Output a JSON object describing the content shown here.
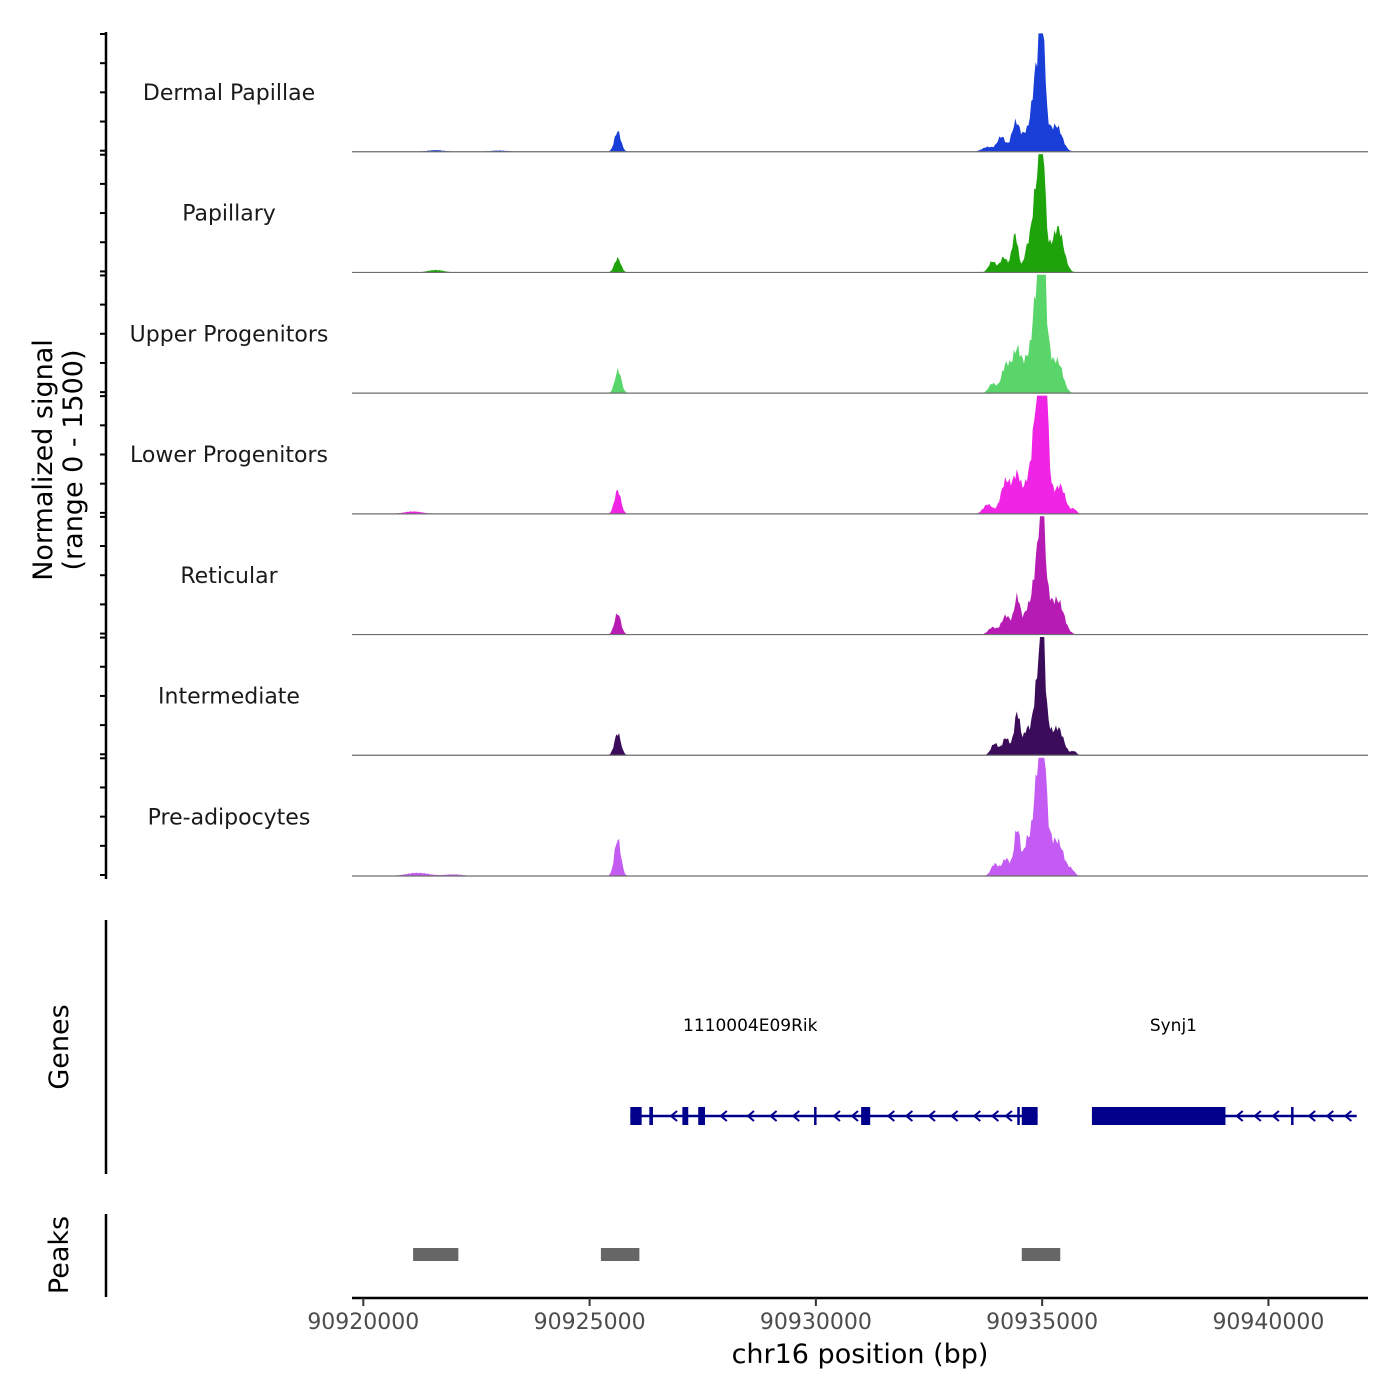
{
  "chart_data": {
    "type": "area",
    "title": "",
    "y_axis_title_line1": "Normalized signal",
    "y_axis_title_line2": "(range 0 - 1500)",
    "y_range": [
      0,
      1500
    ],
    "xlabel": "chr16 position (bp)",
    "x_range": [
      90919750,
      90942200
    ],
    "x_ticks": [
      90920000,
      90925000,
      90930000,
      90935000,
      90940000
    ],
    "x_tick_labels": [
      "90920000",
      "90925000",
      "90930000",
      "90935000",
      "90940000"
    ],
    "tracks": [
      {
        "name": "Dermal Papillae",
        "color": "#1a3fd9",
        "peaks": [
          [
            90921600,
            20,
            180
          ],
          [
            90923000,
            15,
            180
          ],
          [
            90925620,
            260,
            70
          ],
          [
            90933800,
            60,
            120
          ],
          [
            90934100,
            190,
            90
          ],
          [
            90934420,
            380,
            90
          ],
          [
            90934620,
            140,
            70
          ],
          [
            90934920,
            1200,
            130
          ],
          [
            90935000,
            1350,
            45
          ],
          [
            90935320,
            320,
            120
          ]
        ]
      },
      {
        "name": "Papillary",
        "color": "#1ea40a",
        "peaks": [
          [
            90921600,
            30,
            180
          ],
          [
            90925620,
            180,
            70
          ],
          [
            90933900,
            140,
            80
          ],
          [
            90934150,
            190,
            80
          ],
          [
            90934400,
            480,
            70
          ],
          [
            90934650,
            170,
            60
          ],
          [
            90934920,
            1250,
            130
          ],
          [
            90935000,
            1300,
            45
          ],
          [
            90935350,
            560,
            120
          ]
        ]
      },
      {
        "name": "Upper Progenitors",
        "color": "#5ad569",
        "peaks": [
          [
            90925630,
            290,
            70
          ],
          [
            90933900,
            120,
            80
          ],
          [
            90934200,
            350,
            100
          ],
          [
            90934450,
            550,
            100
          ],
          [
            90934650,
            220,
            70
          ],
          [
            90934950,
            1680,
            140
          ],
          [
            90935000,
            1600,
            45
          ],
          [
            90935350,
            380,
            110
          ]
        ]
      },
      {
        "name": "Lower Progenitors",
        "color": "#f024e4",
        "peaks": [
          [
            90921100,
            30,
            200
          ],
          [
            90925620,
            300,
            70
          ],
          [
            90933800,
            120,
            100
          ],
          [
            90934200,
            420,
            110
          ],
          [
            90934450,
            480,
            90
          ],
          [
            90934650,
            210,
            70
          ],
          [
            90934950,
            1800,
            140
          ],
          [
            90935050,
            1700,
            50
          ],
          [
            90935400,
            350,
            110
          ],
          [
            90935700,
            60,
            60
          ]
        ]
      },
      {
        "name": "Reticular",
        "color": "#b61bb4",
        "peaks": [
          [
            90925620,
            270,
            70
          ],
          [
            90933900,
            90,
            90
          ],
          [
            90934200,
            240,
            100
          ],
          [
            90934450,
            470,
            70
          ],
          [
            90934650,
            200,
            70
          ],
          [
            90934950,
            1150,
            140
          ],
          [
            90935000,
            1250,
            45
          ],
          [
            90935350,
            420,
            130
          ]
        ]
      },
      {
        "name": "Intermediate",
        "color": "#3b0c5a",
        "peaks": [
          [
            90925620,
            280,
            70
          ],
          [
            90933950,
            150,
            80
          ],
          [
            90934200,
            220,
            80
          ],
          [
            90934450,
            540,
            70
          ],
          [
            90934650,
            250,
            60
          ],
          [
            90934950,
            1100,
            130
          ],
          [
            90935000,
            1150,
            45
          ],
          [
            90935350,
            340,
            120
          ],
          [
            90935700,
            50,
            60
          ]
        ]
      },
      {
        "name": "Pre-adipocytes",
        "color": "#c45bf2",
        "peaks": [
          [
            90921200,
            40,
            250
          ],
          [
            90922000,
            20,
            200
          ],
          [
            90925620,
            470,
            70
          ],
          [
            90933950,
            150,
            80
          ],
          [
            90934200,
            220,
            90
          ],
          [
            90934450,
            600,
            70
          ],
          [
            90934650,
            300,
            60
          ],
          [
            90934950,
            1450,
            140
          ],
          [
            90935000,
            1550,
            50
          ],
          [
            90935350,
            420,
            130
          ],
          [
            90935650,
            70,
            70
          ]
        ]
      }
    ],
    "genes_track_title": "Genes",
    "gene_color": "#00008b",
    "genes": [
      {
        "name": "1110004E09Rik",
        "label_pos": 90928550,
        "start": 90925900,
        "end": 90934900,
        "strand": "-",
        "exons": [
          [
            90925900,
            90926150
          ],
          [
            90926320,
            90926400
          ],
          [
            90927050,
            90927180
          ],
          [
            90927400,
            90927550
          ],
          [
            90929960,
            90929990
          ],
          [
            90931000,
            90931200
          ],
          [
            90934450,
            90934500
          ],
          [
            90934550,
            90934900
          ]
        ],
        "arrows": [
          90926800,
          90927900,
          90928500,
          90929000,
          90929500,
          90930400,
          90930800,
          90931600,
          90932000,
          90932500,
          90933000,
          90933500,
          90933900,
          90934200
        ]
      },
      {
        "name": "Synj1",
        "label_pos": 90937900,
        "start": 90936100,
        "end": 90941950,
        "strand": "-",
        "exons": [
          [
            90936100,
            90939050
          ],
          [
            90940500,
            90940530
          ]
        ],
        "arrows": [
          90939300,
          90939700,
          90940100,
          90940900,
          90941300,
          90941700
        ]
      }
    ],
    "peaks_track_title": "Peaks",
    "peak_color": "#666666",
    "peak_regions": [
      [
        90921100,
        90922100
      ],
      [
        90925250,
        90926100
      ],
      [
        90934550,
        90935400
      ]
    ]
  }
}
